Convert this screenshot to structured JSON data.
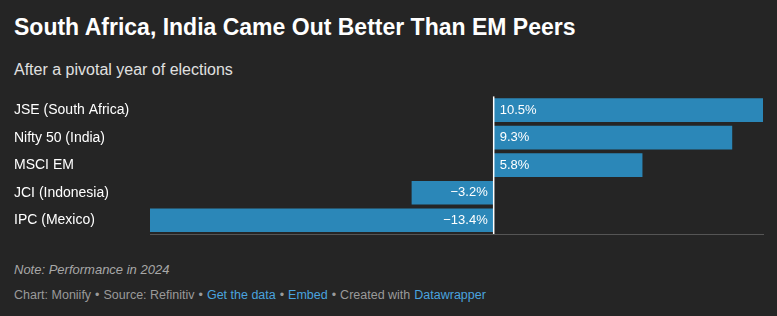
{
  "chart_data": {
    "type": "bar",
    "orientation": "horizontal",
    "title": "South Africa, India Came Out Better Than EM Peers",
    "subtitle": "After a pivotal year of elections",
    "categories": [
      "JSE (South Africa)",
      "Nifty 50 (India)",
      "MSCI EM",
      "JCI (Indonesia)",
      "IPC (Mexico)"
    ],
    "values": [
      10.5,
      9.3,
      5.8,
      -3.2,
      -13.4
    ],
    "value_labels": [
      "10.5%",
      "9.3%",
      "5.8%",
      "−3.2%",
      "−13.4%"
    ],
    "color": "#2b87b8",
    "xlim": [
      -13.4,
      10.5
    ],
    "grid": false,
    "data_labels": true,
    "tick_labels": "y"
  },
  "note": "Note: Performance in 2024",
  "footer": [
    {
      "text": "Chart: Moniify"
    },
    {
      "text": "•"
    },
    {
      "text": "Source: Refinitiv"
    },
    {
      "text": "•"
    },
    {
      "text": "Get the data",
      "link": true
    },
    {
      "text": "•"
    },
    {
      "text": "Embed",
      "link": true
    },
    {
      "text": "•"
    },
    {
      "text": "Created with"
    },
    {
      "text": "Datawrapper",
      "link": true
    }
  ]
}
